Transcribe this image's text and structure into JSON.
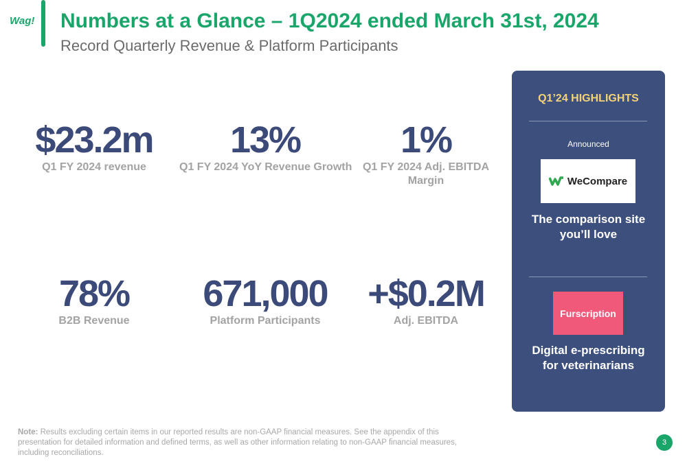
{
  "logo": "Wag!",
  "header": {
    "title": "Numbers at a Glance – 1Q2024 ended March 31st, 2024",
    "subtitle": "Record Quarterly Revenue & Platform Participants"
  },
  "metrics": [
    {
      "value": "$23.2m",
      "label": "Q1 FY 2024 revenue"
    },
    {
      "value": "13%",
      "label": "Q1 FY 2024 YoY Revenue Growth"
    },
    {
      "value": "1%",
      "label": "Q1 FY 2024 Adj. EBITDA Margin"
    },
    {
      "value": "78%",
      "label": "B2B Revenue"
    },
    {
      "value": "671,000",
      "label": "Platform Participants"
    },
    {
      "value": "+$0.2M",
      "label": "Adj. EBITDA"
    }
  ],
  "highlights": {
    "title": "Q1’24 HIGHLIGHTS",
    "announced": "Announced",
    "items": [
      {
        "logo": "WeCompare",
        "caption": "The comparison site you’ll love"
      },
      {
        "logo": "Furscription",
        "caption": "Digital e-prescribing for veterinarians"
      }
    ]
  },
  "note": {
    "label": "Note:",
    "text": "Results excluding certain items in our reported results are non-GAAP financial measures. See the appendix of this presentation for detailed information and defined terms, as well as other information relating to non-GAAP financial measures, including reconciliations."
  },
  "page_number": "3"
}
